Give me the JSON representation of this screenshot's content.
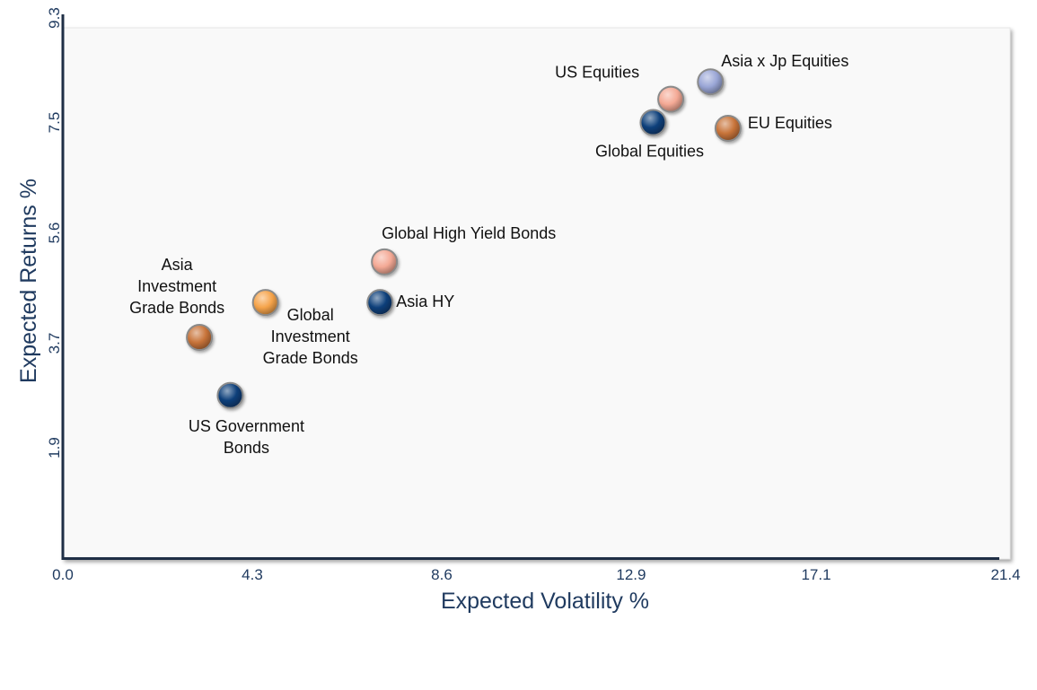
{
  "chart_data": {
    "type": "scatter",
    "title": "",
    "xlabel": "Expected Volatility %",
    "ylabel": "Expected Returns %",
    "xlim": [
      0,
      21.4
    ],
    "ylim": [
      0,
      9.3
    ],
    "x_ticks": [
      "0.0",
      "4.3",
      "8.6",
      "12.9",
      "17.1",
      "21.4"
    ],
    "y_ticks": [
      "1.9",
      "3.7",
      "5.6",
      "7.5",
      "9.3"
    ],
    "grid": false,
    "legend": "none",
    "series": [
      {
        "x": 14.7,
        "y": 8.2,
        "label": "Asia x Jp Equities",
        "color": "#9aa6d6"
      },
      {
        "x": 13.8,
        "y": 7.9,
        "label": "US Equities",
        "color": "#f4a995"
      },
      {
        "x": 13.4,
        "y": 7.5,
        "label": "Global Equities",
        "color": "#0d3f7a"
      },
      {
        "x": 15.1,
        "y": 7.4,
        "label": "EU Equities",
        "color": "#c8743a"
      },
      {
        "x": 7.3,
        "y": 5.1,
        "label": "Global High  Yield Bonds",
        "color": "#f4a995"
      },
      {
        "x": 7.2,
        "y": 4.4,
        "label": "Asia HY",
        "color": "#0d3f7a"
      },
      {
        "x": 4.6,
        "y": 4.4,
        "label": "Global Investment Grade Bonds",
        "color": "#f5a34a"
      },
      {
        "x": 3.1,
        "y": 3.8,
        "label": "Asia Investment Grade Bonds",
        "color": "#c8743a"
      },
      {
        "x": 3.8,
        "y": 2.8,
        "label": "US Government Bonds",
        "color": "#0d3f7a"
      }
    ],
    "point_labels": [
      {
        "lines": [
          "Asia x Jp Equities"
        ]
      },
      {
        "lines": [
          "US Equities"
        ]
      },
      {
        "lines": [
          "Global Equities"
        ]
      },
      {
        "lines": [
          "EU Equities"
        ]
      },
      {
        "lines": [
          "Global High  Yield Bonds"
        ]
      },
      {
        "lines": [
          "Asia HY"
        ]
      },
      {
        "lines": [
          "Global",
          "Investment",
          "Grade Bonds"
        ]
      },
      {
        "lines": [
          "Asia",
          "Investment",
          "Grade Bonds"
        ]
      },
      {
        "lines": [
          "US Government",
          "Bonds"
        ]
      }
    ]
  }
}
